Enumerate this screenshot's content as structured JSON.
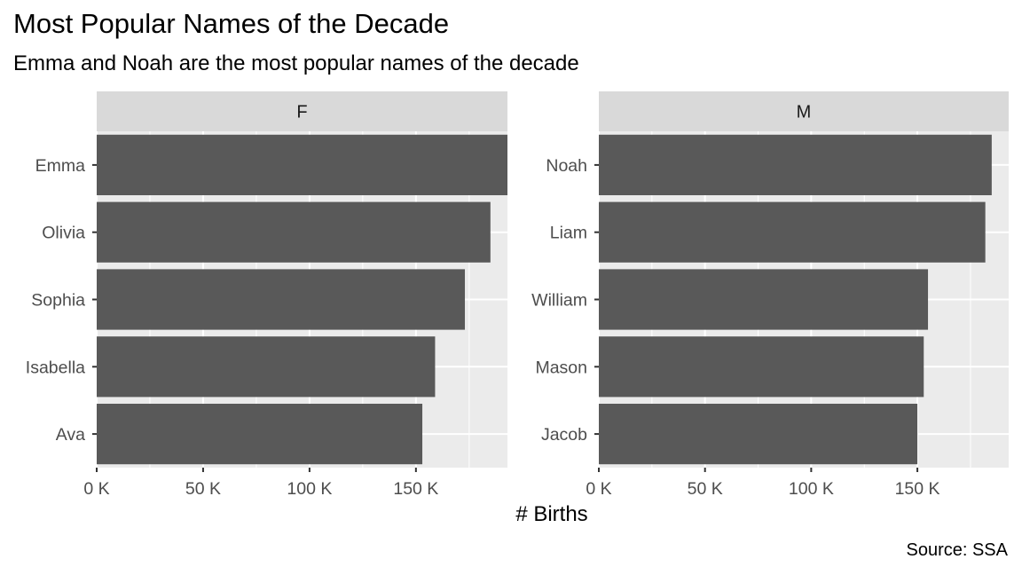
{
  "chart_data": {
    "type": "bar",
    "orientation": "horizontal",
    "title": "Most Popular Names of the Decade",
    "subtitle": "Emma and Noah are the most popular names of the decade",
    "xlabel": "# Births",
    "ylabel": "",
    "caption": "Source: SSA",
    "xlim": [
      0,
      193000
    ],
    "x_ticks": [
      0,
      50000,
      100000,
      150000
    ],
    "x_tick_labels": [
      "0 K",
      "50 K",
      "100 K",
      "150 K"
    ],
    "grid": true,
    "bar_color": "#595959",
    "panel_background": "#ebebeb",
    "strip_background": "#d9d9d9",
    "facets": [
      {
        "label": "F",
        "categories": [
          "Emma",
          "Olivia",
          "Sophia",
          "Isabella",
          "Ava"
        ],
        "values": [
          193000,
          185000,
          173000,
          159000,
          153000
        ]
      },
      {
        "label": "M",
        "categories": [
          "Noah",
          "Liam",
          "William",
          "Mason",
          "Jacob"
        ],
        "values": [
          185000,
          182000,
          155000,
          153000,
          150000
        ]
      }
    ]
  }
}
